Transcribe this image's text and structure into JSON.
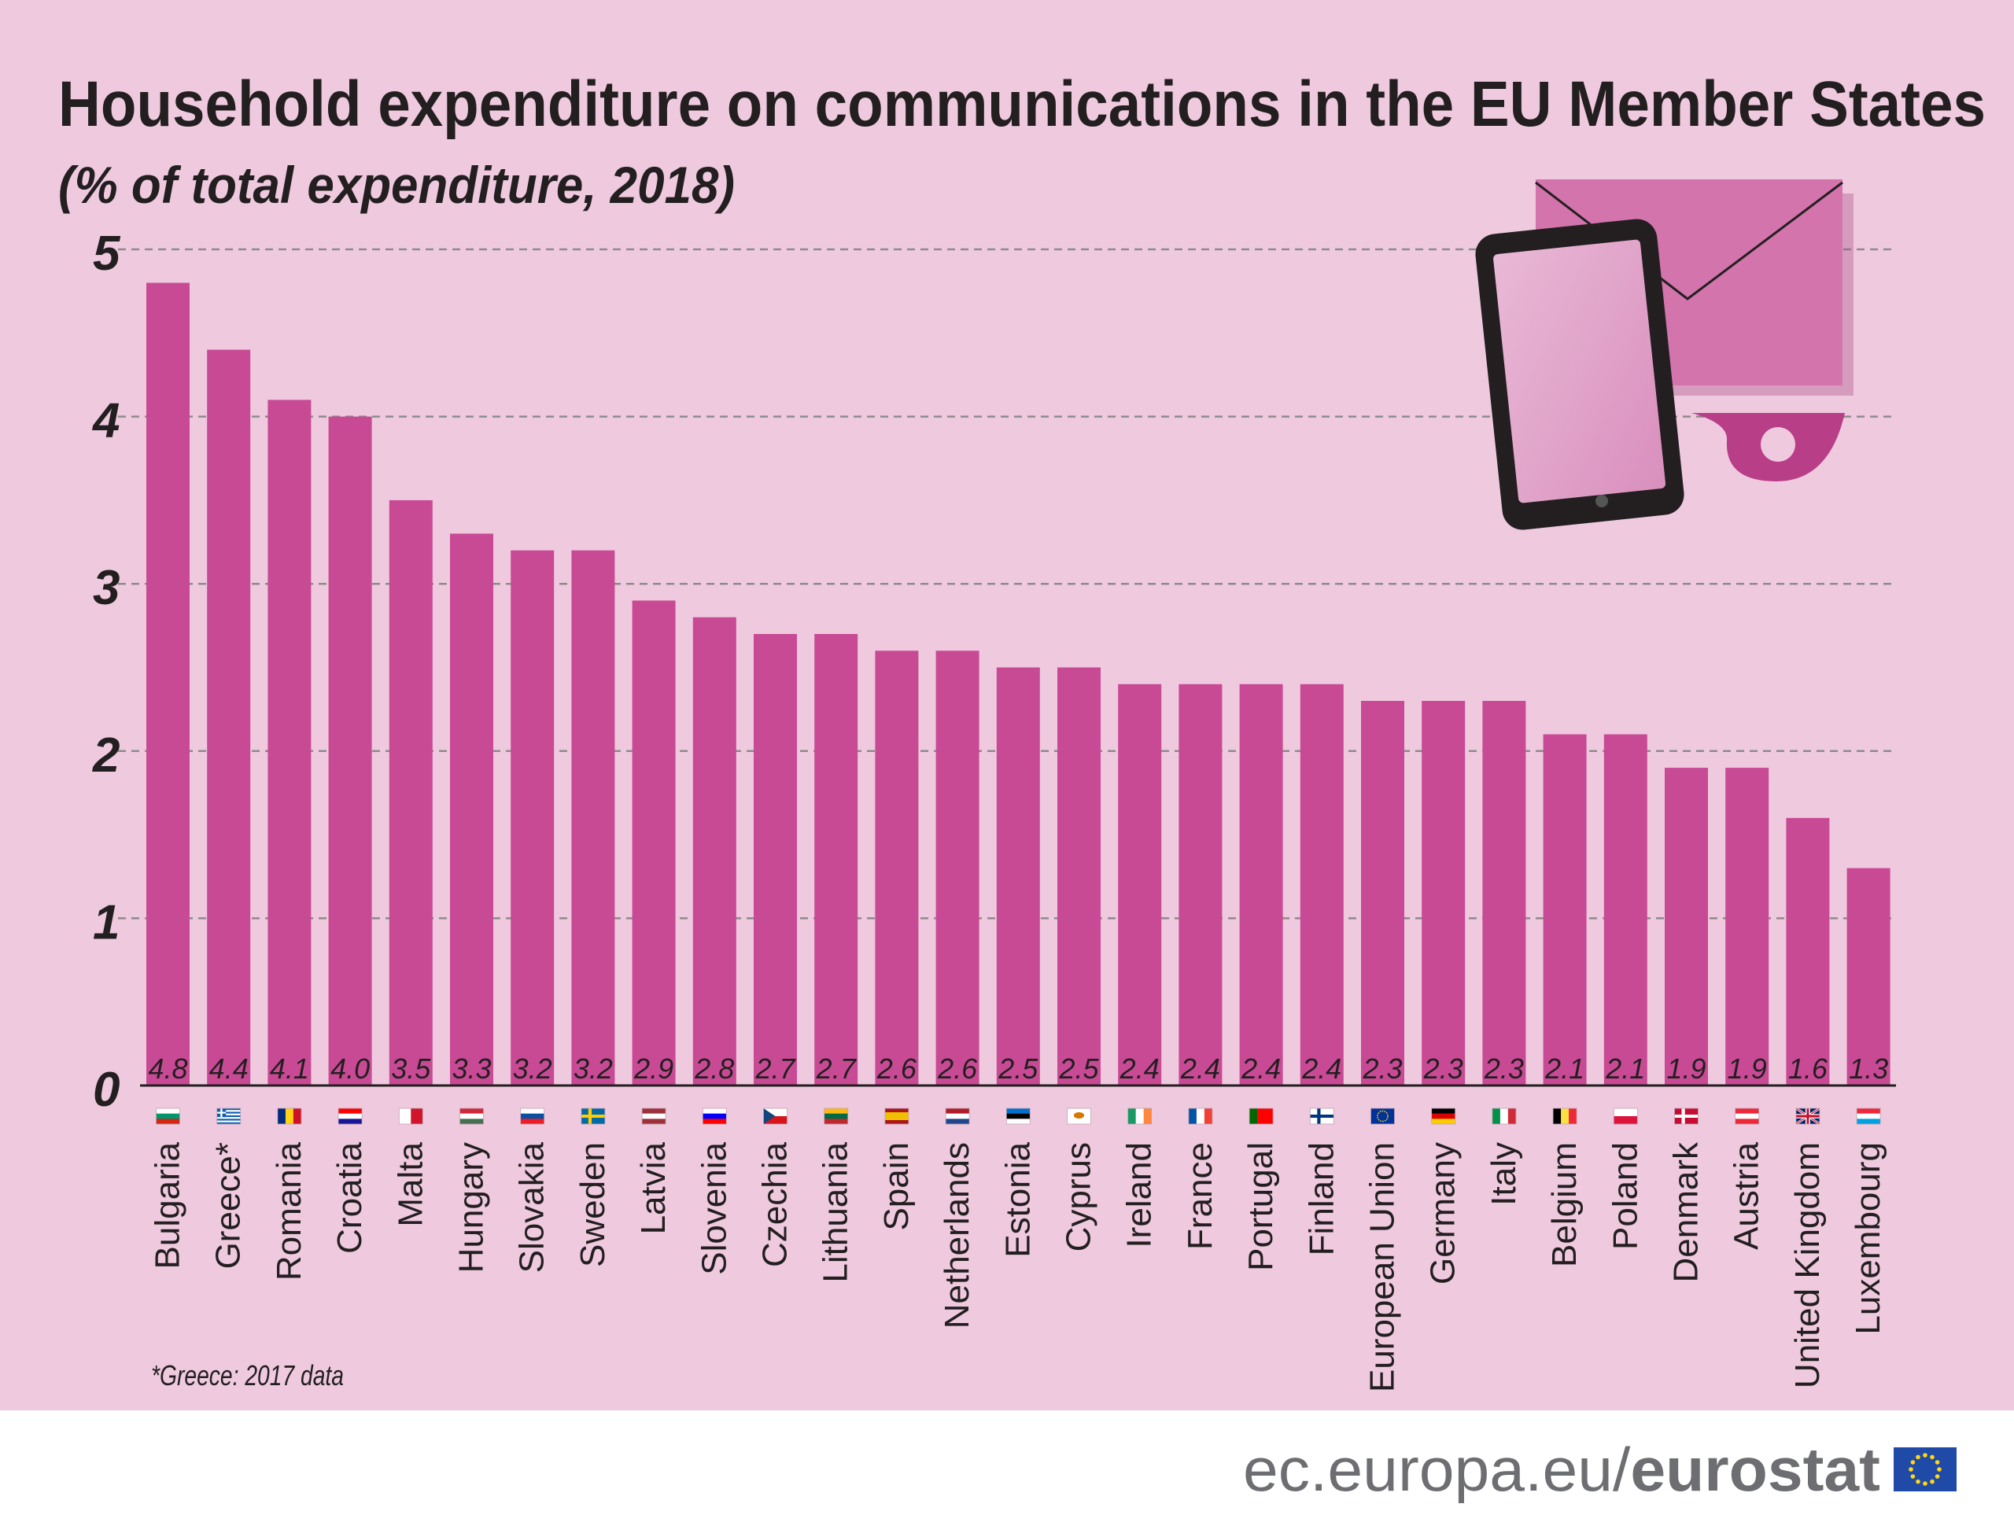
{
  "colors": {
    "background": "#efcadf",
    "bar": "#c84a95",
    "grid": "#8c8c8c",
    "text": "#231f20",
    "footer_bg": "#ffffff",
    "footer_text": "#6d6e71",
    "eu_blue": "#1f4aa8",
    "eu_star": "#ffd617"
  },
  "chart_data": {
    "type": "bar",
    "title": "Household expenditure on communications in the EU Member States",
    "subtitle": "(% of total expenditure, 2018)",
    "xlabel": "",
    "ylabel": "",
    "ylim": [
      0,
      5
    ],
    "yticks": [
      "0",
      "1",
      "2",
      "3",
      "4",
      "5"
    ],
    "grid": true,
    "categories": [
      "Bulgaria",
      "Greece*",
      "Romania",
      "Croatia",
      "Malta",
      "Hungary",
      "Slovakia",
      "Sweden",
      "Latvia",
      "Slovenia",
      "Czechia",
      "Lithuania",
      "Spain",
      "Netherlands",
      "Estonia",
      "Cyprus",
      "Ireland",
      "France",
      "Portugal",
      "Finland",
      "European Union",
      "Germany",
      "Italy",
      "Belgium",
      "Poland",
      "Denmark",
      "Austria",
      "United Kingdom",
      "Luxembourg"
    ],
    "values": [
      4.8,
      4.4,
      4.1,
      4.0,
      3.5,
      3.3,
      3.2,
      3.2,
      2.9,
      2.8,
      2.7,
      2.7,
      2.6,
      2.6,
      2.5,
      2.5,
      2.4,
      2.4,
      2.4,
      2.4,
      2.3,
      2.3,
      2.3,
      2.1,
      2.1,
      1.9,
      1.9,
      1.6,
      1.3
    ],
    "value_labels": [
      "4.8",
      "4.4",
      "4.1",
      "4.0",
      "3.5",
      "3.3",
      "3.2",
      "3.2",
      "2.9",
      "2.8",
      "2.7",
      "2.7",
      "2.6",
      "2.6",
      "2.5",
      "2.5",
      "2.4",
      "2.4",
      "2.4",
      "2.4",
      "2.3",
      "2.3",
      "2.3",
      "2.1",
      "2.1",
      "1.9",
      "1.9",
      "1.6",
      "1.3"
    ],
    "flags": [
      "bg-flag-icon",
      "gr-flag-icon",
      "ro-flag-icon",
      "hr-flag-icon",
      "mt-flag-icon",
      "hu-flag-icon",
      "sk-flag-icon",
      "se-flag-icon",
      "lv-flag-icon",
      "si-flag-icon",
      "cz-flag-icon",
      "lt-flag-icon",
      "es-flag-icon",
      "nl-flag-icon",
      "ee-flag-icon",
      "cy-flag-icon",
      "ie-flag-icon",
      "fr-flag-icon",
      "pt-flag-icon",
      "fi-flag-icon",
      "eu-flag-icon",
      "de-flag-icon",
      "it-flag-icon",
      "be-flag-icon",
      "pl-flag-icon",
      "dk-flag-icon",
      "at-flag-icon",
      "uk-flag-icon",
      "lu-flag-icon"
    ],
    "footnote": "*Greece: 2017 data"
  },
  "footer": {
    "url_prefix": "ec.europa.eu/",
    "brand": "eurostat",
    "logo_icon": "eu-flag-icon"
  },
  "illustration": {
    "icons": [
      "envelope-icon",
      "tablet-icon",
      "post-horn-icon"
    ]
  }
}
